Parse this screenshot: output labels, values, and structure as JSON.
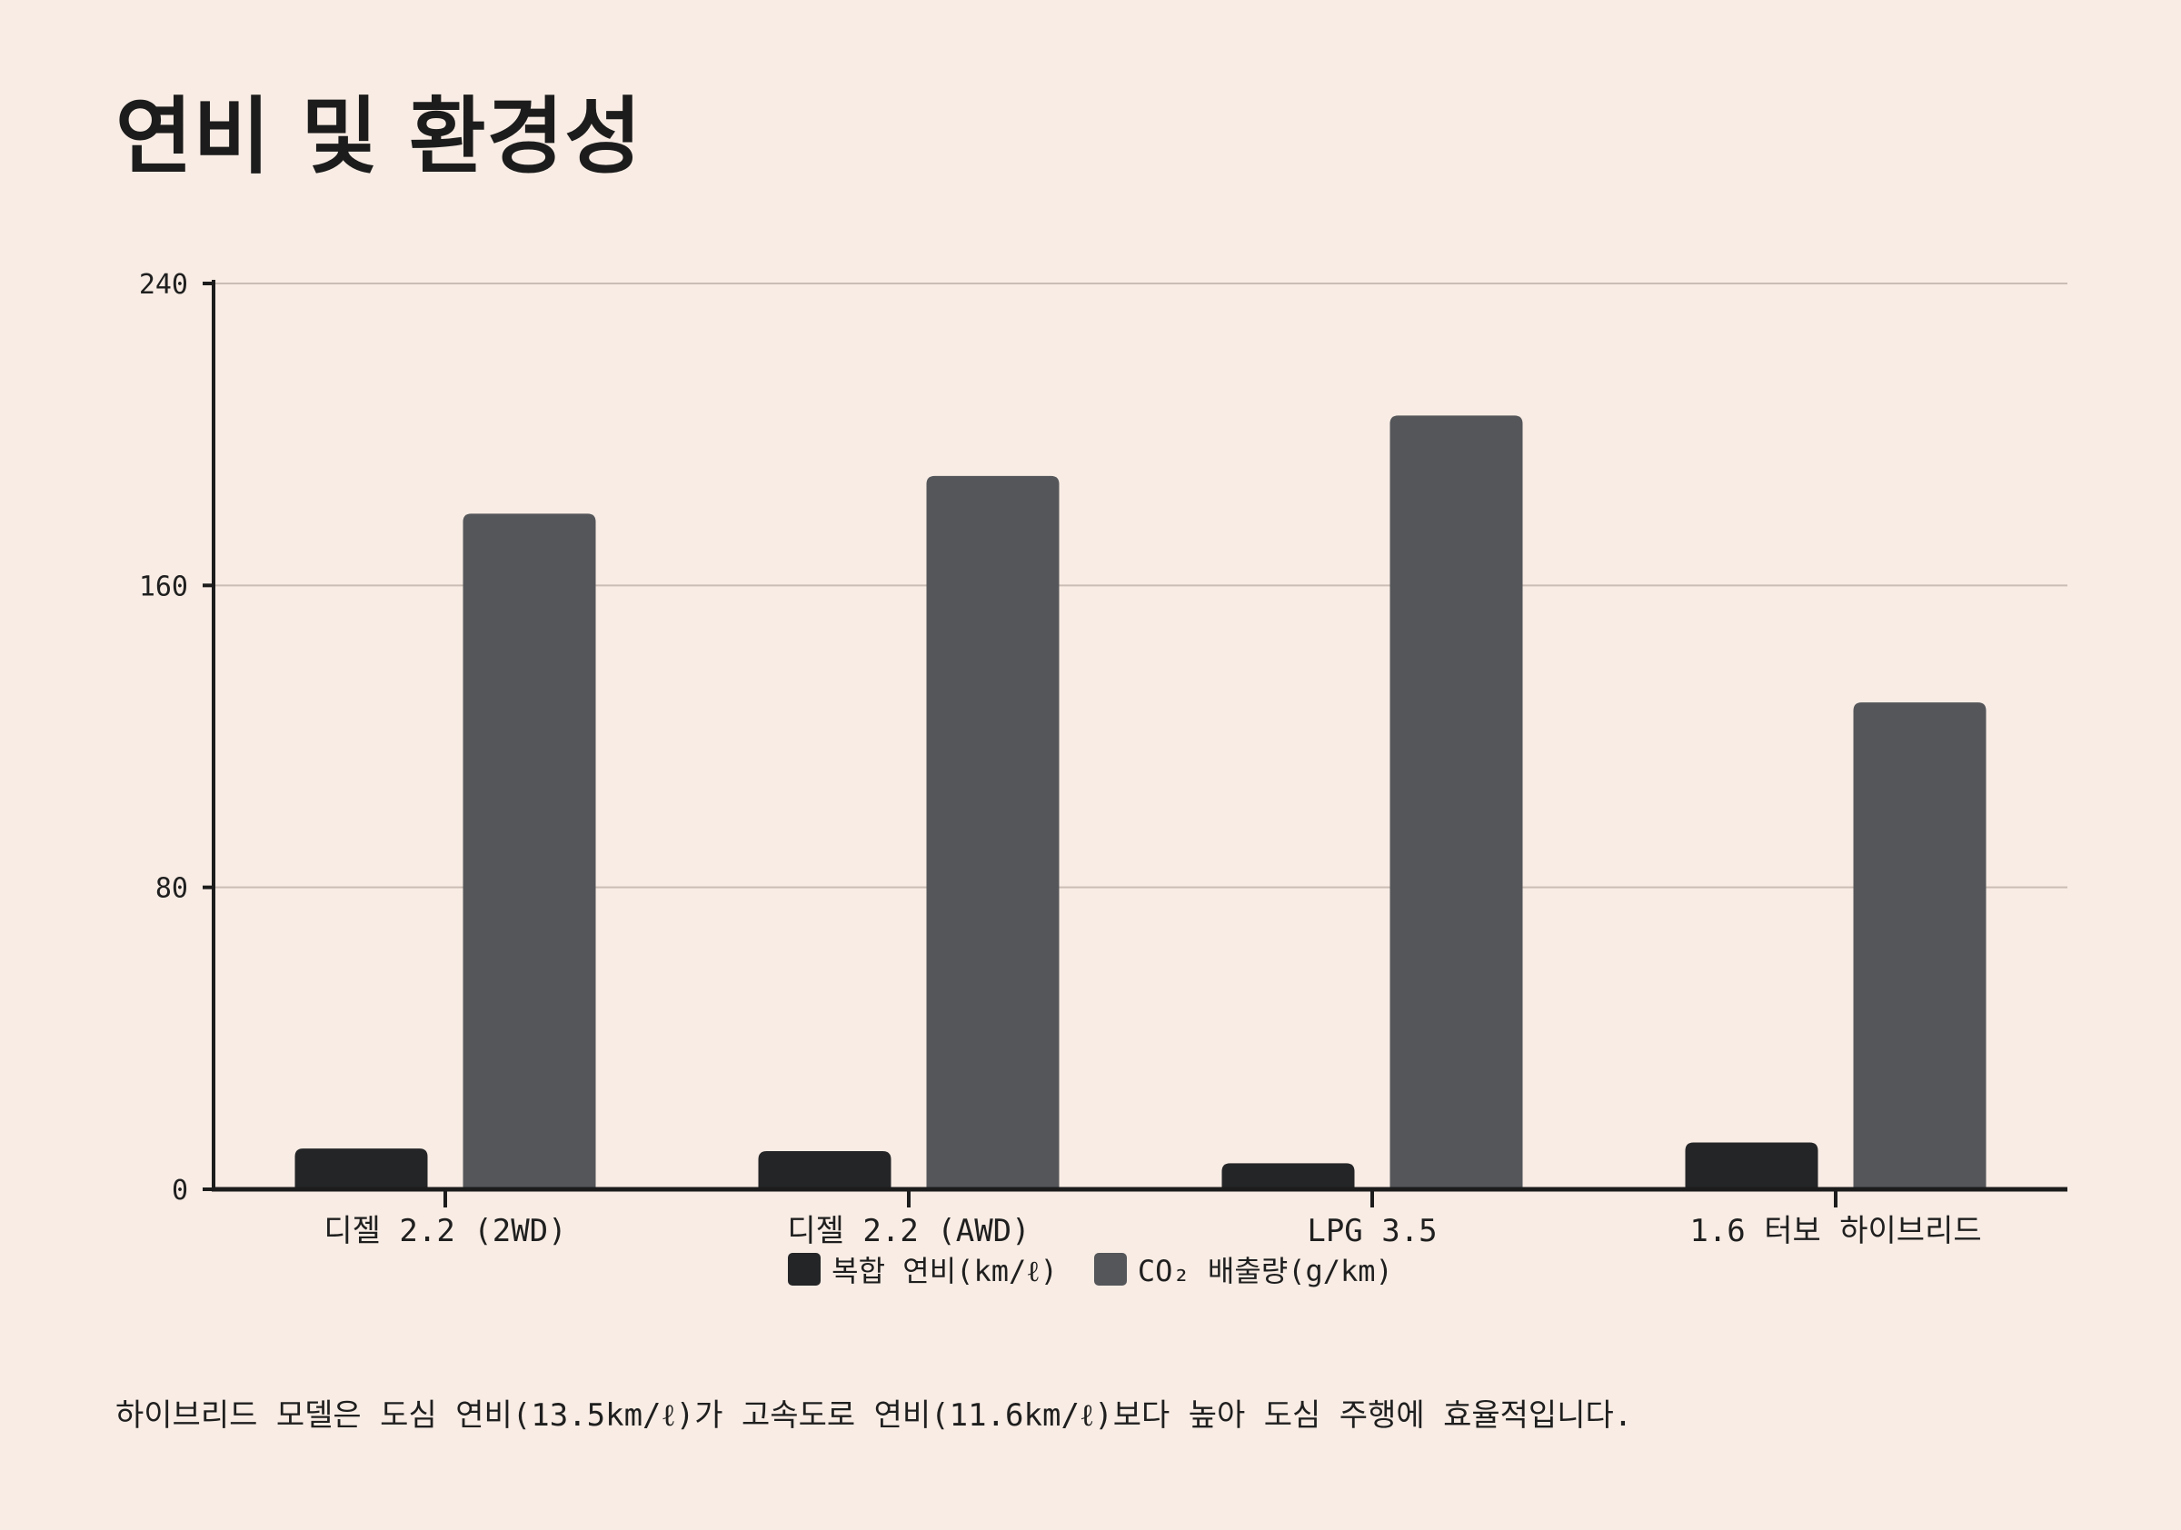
{
  "title": "연비 및 환경성",
  "footnote": "하이브리드 모델은 도심 연비(13.5km/ℓ)가 고속도로 연비(11.6km/ℓ)보다 높아 도심 주행에 효율적입니다.",
  "colors": {
    "background": "#f8ece4",
    "fuel": "#242527",
    "co2": "#54565a",
    "grid": "#cbbdb4",
    "axis": "#1c1c1c"
  },
  "chart_data": {
    "type": "bar",
    "categories": [
      "디젤 2.2 (2WD)",
      "디젤 2.2 (AWD)",
      "LPG 3.5",
      "1.6 터보 하이브리드"
    ],
    "series": [
      {
        "name": "복합 연비(km/ℓ)",
        "values": [
          10.8,
          10.1,
          6.9,
          12.4
        ]
      },
      {
        "name": "CO₂ 배출량(g/km)",
        "values": [
          179,
          189,
          205,
          129
        ]
      }
    ],
    "yticks": [
      "0",
      "80",
      "160",
      "240"
    ],
    "ylim": [
      0,
      240
    ],
    "grid": true,
    "legend": "bottom-center"
  }
}
